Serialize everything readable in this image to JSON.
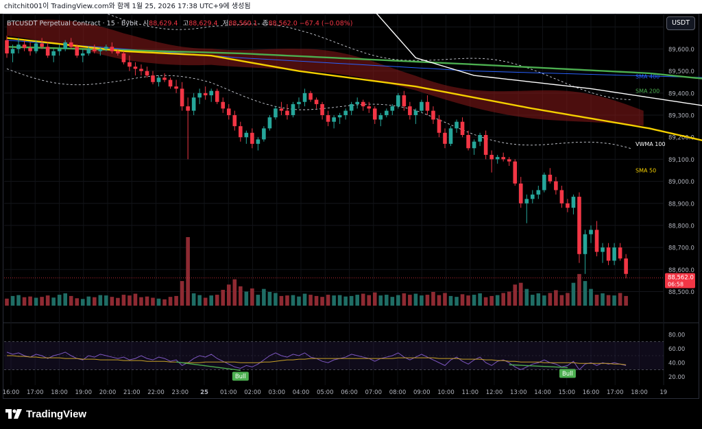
{
  "header": {
    "caption": "chitchit001이 TradingView.com와 함께 1월 25, 2026 17:38 UTC+9에 생성됨"
  },
  "legend": {
    "symbol": "BTCUSDT Perpetual Contract · 15 · Bybit",
    "open_label": "시",
    "open": "88,629.4",
    "high_label": "고",
    "high": "88,629.4",
    "low_label": "저",
    "low": "88,560.1",
    "close_label": "종",
    "close": "88,562.0",
    "change": "−67.4 (−0.08%)"
  },
  "currency_button": "USDT",
  "brand": {
    "name": "TradingView"
  },
  "colors": {
    "up": "#26a69a",
    "down": "#f23645",
    "sma50": "#f5d000",
    "sma200": "#4caf50",
    "sma400": "#2962ff",
    "vwma100": "#ffffff",
    "cloud": "#8b1a1a",
    "rsi": "#7e57c2",
    "rsi_ma": "#c9a227"
  },
  "chart_data": [
    {
      "type": "candlestick",
      "symbol": "BTCUSDT Perpetual Contract",
      "interval": "15",
      "exchange": "Bybit",
      "ylim": [
        88430,
        89760
      ],
      "y_ticks": [
        "89,700.0",
        "89,600.0",
        "89,500.0",
        "89,400.0",
        "89,300.0",
        "89,200.0",
        "89,100.0",
        "89,000.0",
        "88,900.0",
        "88,800.0",
        "88,700.0",
        "88,600.0",
        "88,500.0"
      ],
      "x_ticks": [
        "16:00",
        "17:00",
        "18:00",
        "19:00",
        "20:00",
        "21:00",
        "22:00",
        "23:00",
        "25",
        "01:00",
        "02:00",
        "03:00",
        "04:00",
        "05:00",
        "06:00",
        "07:00",
        "08:00",
        "09:00",
        "10:00",
        "11:00",
        "12:00",
        "13:00",
        "14:00",
        "15:00",
        "16:00",
        "17:00",
        "18:00",
        "19"
      ],
      "last_price": "88,562.0",
      "countdown": "06:58",
      "ohlc": [
        [
          89640,
          89660,
          89560,
          89580
        ],
        [
          89580,
          89620,
          89540,
          89600
        ],
        [
          89600,
          89650,
          89580,
          89620
        ],
        [
          89620,
          89640,
          89590,
          89605
        ],
        [
          89605,
          89630,
          89570,
          89590
        ],
        [
          89590,
          89640,
          89580,
          89625
        ],
        [
          89625,
          89650,
          89600,
          89610
        ],
        [
          89610,
          89630,
          89560,
          89570
        ],
        [
          89570,
          89600,
          89540,
          89590
        ],
        [
          89590,
          89620,
          89570,
          89600
        ],
        [
          89600,
          89640,
          89590,
          89630
        ],
        [
          89630,
          89650,
          89600,
          89610
        ],
        [
          89610,
          89620,
          89560,
          89570
        ],
        [
          89570,
          89600,
          89540,
          89580
        ],
        [
          89580,
          89610,
          89570,
          89600
        ],
        [
          89600,
          89620,
          89580,
          89590
        ],
        [
          89590,
          89610,
          89570,
          89600
        ],
        [
          89600,
          89620,
          89590,
          89610
        ],
        [
          89610,
          89630,
          89580,
          89590
        ],
        [
          89590,
          89600,
          89570,
          89580
        ],
        [
          89580,
          89590,
          89530,
          89540
        ],
        [
          89540,
          89570,
          89500,
          89520
        ],
        [
          89520,
          89540,
          89480,
          89510
        ],
        [
          89510,
          89530,
          89480,
          89500
        ],
        [
          89500,
          89520,
          89470,
          89480
        ],
        [
          89480,
          89500,
          89440,
          89450
        ],
        [
          89450,
          89480,
          89430,
          89470
        ],
        [
          89470,
          89490,
          89450,
          89460
        ],
        [
          89460,
          89470,
          89420,
          89430
        ],
        [
          89430,
          89460,
          89400,
          89420
        ],
        [
          89420,
          89450,
          89320,
          89340
        ],
        [
          89340,
          89380,
          89100,
          89320
        ],
        [
          89320,
          89400,
          89300,
          89380
        ],
        [
          89380,
          89420,
          89350,
          89400
        ],
        [
          89400,
          89430,
          89370,
          89390
        ],
        [
          89390,
          89420,
          89360,
          89410
        ],
        [
          89410,
          89420,
          89350,
          89360
        ],
        [
          89360,
          89380,
          89310,
          89330
        ],
        [
          89330,
          89350,
          89280,
          89300
        ],
        [
          89300,
          89320,
          89230,
          89250
        ],
        [
          89250,
          89270,
          89180,
          89200
        ],
        [
          89200,
          89230,
          89170,
          89220
        ],
        [
          89220,
          89240,
          89150,
          89170
        ],
        [
          89170,
          89200,
          89140,
          89190
        ],
        [
          89190,
          89250,
          89180,
          89240
        ],
        [
          89240,
          89300,
          89230,
          89290
        ],
        [
          89290,
          89340,
          89280,
          89330
        ],
        [
          89330,
          89360,
          89300,
          89320
        ],
        [
          89320,
          89350,
          89280,
          89300
        ],
        [
          89300,
          89360,
          89290,
          89350
        ],
        [
          89350,
          89380,
          89330,
          89360
        ],
        [
          89360,
          89420,
          89340,
          89400
        ],
        [
          89400,
          89410,
          89360,
          89370
        ],
        [
          89370,
          89380,
          89330,
          89350
        ],
        [
          89350,
          89360,
          89280,
          89300
        ],
        [
          89300,
          89320,
          89250,
          89270
        ],
        [
          89270,
          89300,
          89240,
          89290
        ],
        [
          89290,
          89310,
          89260,
          89300
        ],
        [
          89300,
          89330,
          89280,
          89320
        ],
        [
          89320,
          89360,
          89300,
          89350
        ],
        [
          89350,
          89380,
          89330,
          89360
        ],
        [
          89360,
          89370,
          89320,
          89340
        ],
        [
          89340,
          89360,
          89310,
          89330
        ],
        [
          89330,
          89340,
          89260,
          89280
        ],
        [
          89280,
          89310,
          89250,
          89300
        ],
        [
          89300,
          89330,
          89290,
          89320
        ],
        [
          89320,
          89350,
          89300,
          89340
        ],
        [
          89340,
          89400,
          89330,
          89390
        ],
        [
          89390,
          89410,
          89320,
          89340
        ],
        [
          89340,
          89360,
          89280,
          89300
        ],
        [
          89300,
          89330,
          89260,
          89320
        ],
        [
          89320,
          89370,
          89310,
          89360
        ],
        [
          89360,
          89390,
          89300,
          89320
        ],
        [
          89320,
          89340,
          89260,
          89280
        ],
        [
          89280,
          89300,
          89200,
          89220
        ],
        [
          89220,
          89240,
          89150,
          89170
        ],
        [
          89170,
          89250,
          89160,
          89240
        ],
        [
          89240,
          89280,
          89220,
          89270
        ],
        [
          89270,
          89290,
          89200,
          89210
        ],
        [
          89210,
          89230,
          89140,
          89150
        ],
        [
          89150,
          89190,
          89120,
          89180
        ],
        [
          89180,
          89220,
          89160,
          89210
        ],
        [
          89210,
          89230,
          89100,
          89120
        ],
        [
          89120,
          89140,
          89040,
          89100
        ],
        [
          89100,
          89120,
          89080,
          89110
        ],
        [
          89110,
          89130,
          89090,
          89100
        ],
        [
          89100,
          89110,
          89070,
          89090
        ],
        [
          89090,
          89100,
          88980,
          88990
        ],
        [
          88990,
          89020,
          88880,
          88900
        ],
        [
          88900,
          88940,
          88810,
          88920
        ],
        [
          88920,
          88960,
          88900,
          88940
        ],
        [
          88940,
          88980,
          88920,
          88960
        ],
        [
          88960,
          89040,
          88950,
          89030
        ],
        [
          89030,
          89060,
          88990,
          89000
        ],
        [
          89000,
          89020,
          88940,
          88960
        ],
        [
          88960,
          88980,
          88880,
          88900
        ],
        [
          88900,
          88920,
          88860,
          88880
        ],
        [
          88880,
          88940,
          88850,
          88930
        ],
        [
          88930,
          88950,
          88630,
          88670
        ],
        [
          88670,
          88780,
          88580,
          88760
        ],
        [
          88760,
          88800,
          88720,
          88780
        ],
        [
          88780,
          88820,
          88660,
          88680
        ],
        [
          88680,
          88720,
          88630,
          88700
        ],
        [
          88700,
          88720,
          88620,
          88640
        ],
        [
          88640,
          88720,
          88620,
          88700
        ],
        [
          88700,
          88720,
          88640,
          88650
        ],
        [
          88650,
          88670,
          88560,
          88580
        ]
      ],
      "volume_max": 390,
      "volume": [
        40,
        55,
        60,
        48,
        52,
        45,
        50,
        58,
        46,
        62,
        70,
        55,
        42,
        38,
        52,
        48,
        60,
        58,
        50,
        44,
        62,
        58,
        68,
        48,
        52,
        45,
        40,
        36,
        50,
        55,
        140,
        390,
        70,
        60,
        45,
        58,
        62,
        90,
        120,
        150,
        110,
        80,
        98,
        62,
        95,
        78,
        72,
        55,
        58,
        60,
        52,
        68,
        62,
        55,
        50,
        62,
        58,
        60,
        52,
        55,
        62,
        68,
        60,
        75,
        58,
        62,
        50,
        60,
        70,
        62,
        68,
        58,
        62,
        78,
        60,
        72,
        55,
        50,
        65,
        58,
        62,
        70,
        48,
        55,
        60,
        72,
        80,
        120,
        130,
        95,
        62,
        70,
        58,
        72,
        88,
        60,
        72,
        130,
        180,
        140,
        95,
        62,
        70,
        60,
        58,
        72,
        55
      ],
      "series": [
        {
          "name": "SMA 400",
          "label": "SMA 400",
          "values_anchor": [
            [
              0,
              89640
            ],
            [
              40,
              89560
            ],
            [
              80,
              89500
            ],
            [
              120,
              89470
            ],
            [
              140,
              89475
            ]
          ]
        },
        {
          "name": "SMA 200",
          "label": "SMA 200",
          "values_anchor": [
            [
              0,
              89610
            ],
            [
              40,
              89580
            ],
            [
              80,
              89530
            ],
            [
              110,
              89490
            ],
            [
              140,
              89410
            ]
          ]
        },
        {
          "name": "VWMA 100",
          "label": "VWMA 100",
          "values_anchor": [
            [
              62,
              89800
            ],
            [
              70,
              89560
            ],
            [
              80,
              89480
            ],
            [
              100,
              89420
            ],
            [
              120,
              89340
            ],
            [
              140,
              89170
            ]
          ]
        },
        {
          "name": "SMA 50",
          "label": "SMA 50",
          "values_anchor": [
            [
              0,
              89650
            ],
            [
              20,
              89590
            ],
            [
              35,
              89570
            ],
            [
              50,
              89500
            ],
            [
              70,
              89430
            ],
            [
              90,
              89330
            ],
            [
              110,
              89240
            ],
            [
              125,
              89150
            ],
            [
              140,
              89050
            ]
          ]
        }
      ]
    },
    {
      "type": "line",
      "name": "RSI",
      "ylim": [
        10,
        90
      ],
      "y_ticks": [
        "80.00",
        "60.00",
        "40.00",
        "20.00"
      ],
      "bands": [
        70,
        30
      ],
      "annotations": [
        "Bull",
        "Bull"
      ],
      "values": [
        55,
        52,
        54,
        50,
        48,
        52,
        50,
        46,
        50,
        52,
        55,
        50,
        46,
        44,
        50,
        48,
        52,
        50,
        48,
        46,
        48,
        44,
        46,
        50,
        46,
        44,
        48,
        46,
        42,
        44,
        36,
        40,
        46,
        50,
        48,
        52,
        46,
        42,
        38,
        34,
        32,
        36,
        34,
        38,
        44,
        50,
        54,
        50,
        48,
        52,
        50,
        54,
        48,
        46,
        42,
        40,
        44,
        46,
        48,
        52,
        50,
        48,
        46,
        42,
        46,
        48,
        50,
        54,
        48,
        44,
        48,
        52,
        48,
        44,
        40,
        36,
        44,
        48,
        42,
        38,
        44,
        48,
        40,
        36,
        42,
        44,
        40,
        34,
        30,
        34,
        38,
        40,
        44,
        40,
        38,
        34,
        36,
        42,
        30,
        38,
        40,
        36,
        40,
        38,
        40,
        38,
        36
      ],
      "ma": [
        50,
        50,
        49,
        49,
        48,
        48,
        47,
        47,
        47,
        47,
        46,
        46,
        46,
        45,
        45,
        45,
        44,
        44,
        44,
        44,
        43,
        43,
        43,
        43,
        42,
        42,
        42,
        42,
        41,
        41,
        40,
        40,
        40,
        40,
        41,
        41,
        41,
        41,
        41,
        41,
        40,
        40,
        40,
        40,
        41,
        41,
        42,
        43,
        44,
        44,
        45,
        45,
        46,
        46,
        46,
        46,
        46,
        46,
        46,
        46,
        46,
        46,
        46,
        46,
        46,
        46,
        46,
        47,
        47,
        47,
        47,
        47,
        47,
        47,
        46,
        46,
        46,
        46,
        45,
        45,
        45,
        45,
        44,
        44,
        43,
        43,
        42,
        42,
        41,
        41,
        41,
        41,
        40,
        40,
        40,
        40,
        40,
        40,
        39,
        39,
        39,
        39,
        39,
        39,
        38,
        38,
        37
      ]
    }
  ]
}
